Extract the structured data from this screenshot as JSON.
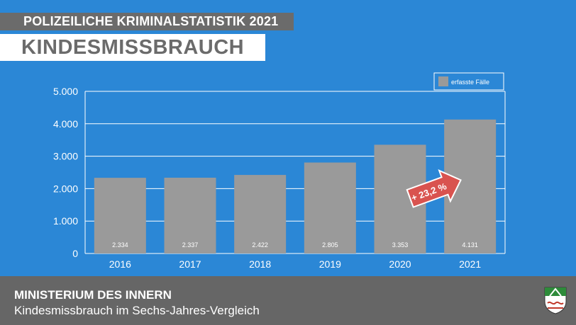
{
  "header": {
    "supertitle": "POLIZEILICHE KRIMINALSTATISTIK 2021",
    "title": "KINDESMISSBRAUCH"
  },
  "footer": {
    "ministry": "MINISTERIUM DES INNERN",
    "subtitle": "Kindesmissbrauch im Sechs-Jahres-Vergleich"
  },
  "colors": {
    "background": "#2b87d6",
    "bar": "#9a9a9a",
    "highlight_arrow": "#d9534f",
    "banner": "#6b6b6b"
  },
  "chart_data": {
    "type": "bar",
    "categories": [
      "2016",
      "2017",
      "2018",
      "2019",
      "2020",
      "2021"
    ],
    "series": [
      {
        "name": "erfasste Fälle",
        "values": [
          2334,
          2337,
          2422,
          2805,
          3353,
          4131
        ],
        "value_labels": [
          "2.334",
          "2.337",
          "2.422",
          "2.805",
          "3.353",
          "4.131"
        ]
      }
    ],
    "ylim": [
      0,
      5000
    ],
    "yticks": [
      0,
      1000,
      2000,
      3000,
      4000,
      5000
    ],
    "ytick_labels": [
      "0",
      "1.000",
      "2.000",
      "3.000",
      "4.000",
      "5.000"
    ],
    "grid": true,
    "legend_position": "top-right",
    "annotation": "+ 23,2 %"
  }
}
